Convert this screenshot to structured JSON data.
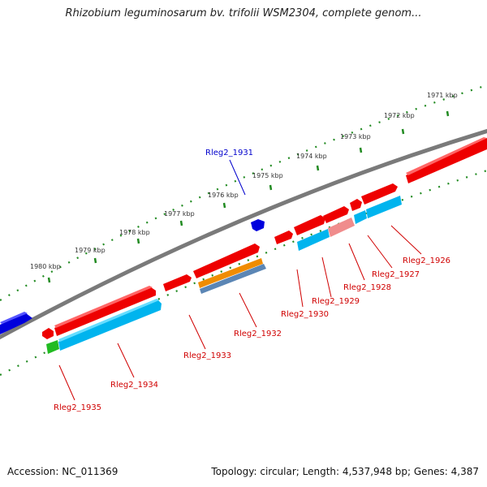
{
  "title": "Rhizobium leguminosarum bv. trifolii WSM2304, complete genom...",
  "footer": {
    "accession": "Accession: NC_011369",
    "summary": "Topology: circular; Length: 4,537,948 bp; Genes: 4,387"
  },
  "ruler": {
    "labels": [
      "1980 kbp",
      "1979 kbp",
      "1978 kbp",
      "1977 kbp",
      "1976 kbp",
      "1975 kbp",
      "1974 kbp",
      "1973 kbp",
      "1972 kbp",
      "1971 kbp"
    ]
  },
  "genes": {
    "rleg2_1931": "Rleg2_1931",
    "rleg2_1926": "Rleg2_1926",
    "rleg2_1927": "Rleg2_1927",
    "rleg2_1928": "Rleg2_1928",
    "rleg2_1929": "Rleg2_1929",
    "rleg2_1930": "Rleg2_1930",
    "rleg2_1932": "Rleg2_1932",
    "rleg2_1933": "Rleg2_1933",
    "rleg2_1934": "Rleg2_1934",
    "rleg2_1935": "Rleg2_1935"
  },
  "colors": {
    "backbone": "#7a7a7a",
    "gene_red": "#ee0000",
    "gene_blue": "#0000dd",
    "cds_cyan": "#00b4ee",
    "orange": "#f08c00",
    "steelblue": "#5b86b5",
    "pink": "#f08c8c",
    "green": "#22bb22",
    "ruler_green": "#228b22"
  }
}
